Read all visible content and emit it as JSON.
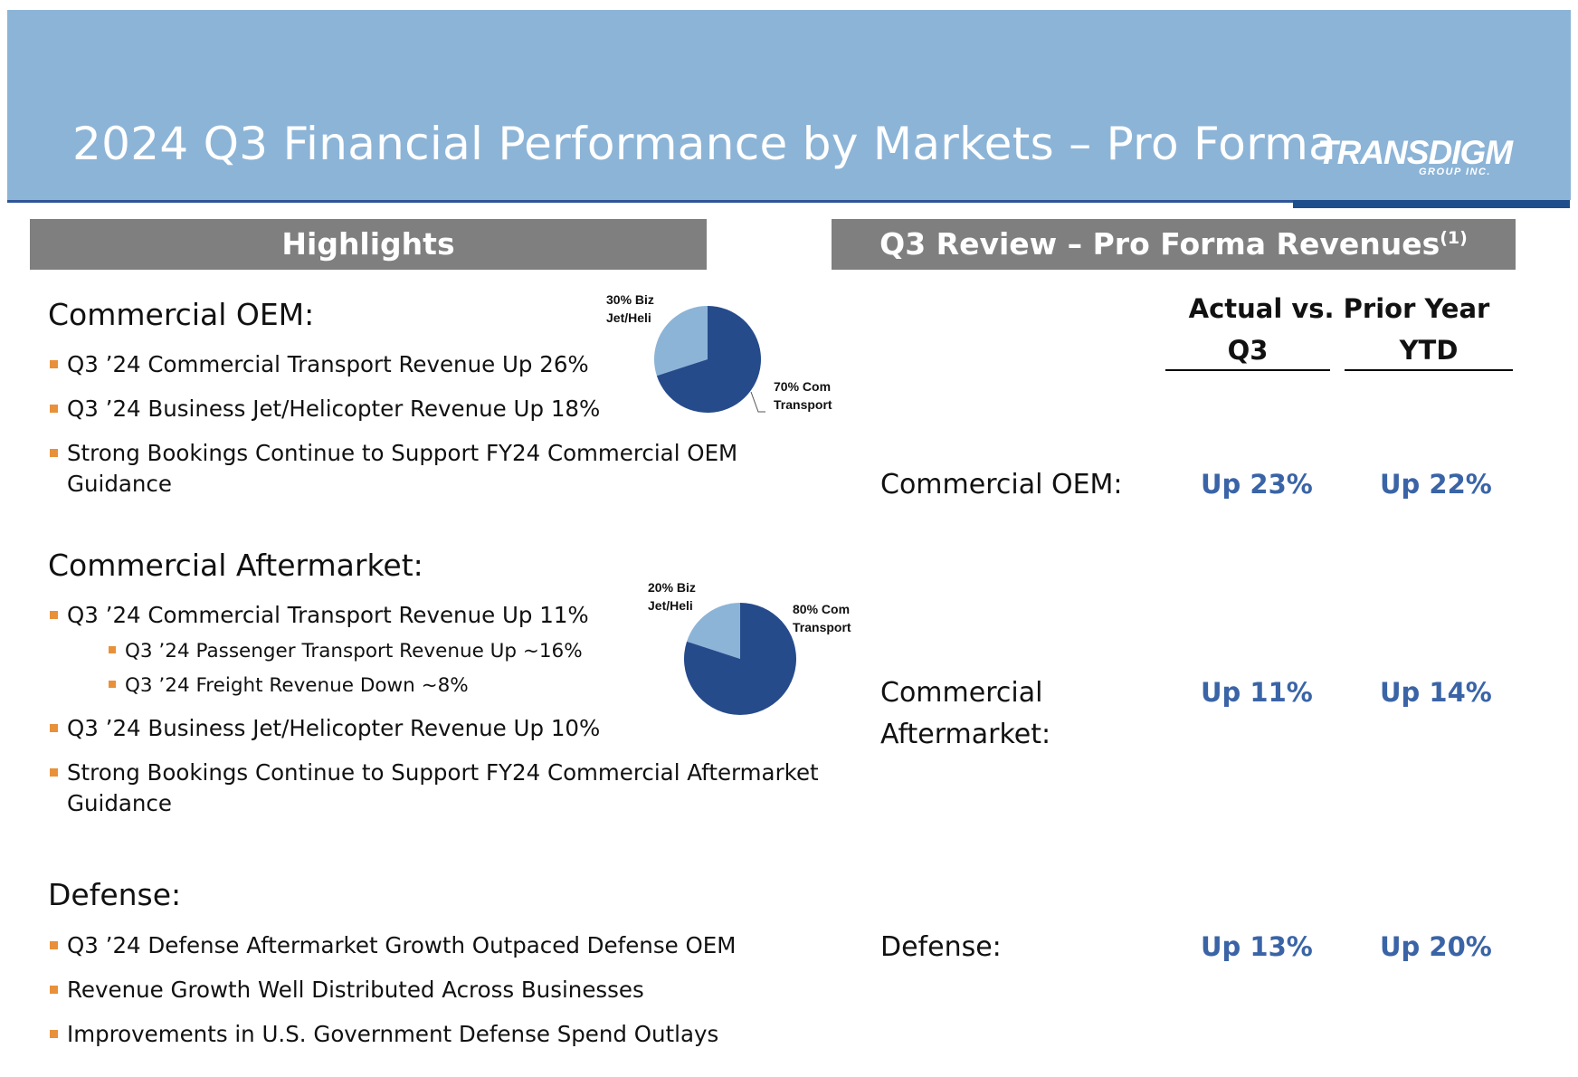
{
  "header": {
    "title": "2024 Q3 Financial Performance by Markets – Pro Forma",
    "logo_main": "TRANSDIGM",
    "logo_sub": "GROUP INC."
  },
  "highlights": {
    "bar_label": "Highlights",
    "commercial_oem": {
      "heading": "Commercial OEM:",
      "bullets": [
        "Q3 ’24 Commercial Transport Revenue Up 26%",
        "Q3 ’24 Business Jet/Helicopter Revenue Up 18%",
        "Strong Bookings Continue to Support FY24 Commercial OEM",
        "Guidance"
      ],
      "pie": {
        "label_biz_1": "30% Biz",
        "label_biz_2": "Jet/Heli",
        "label_com_1": "70% Com",
        "label_com_2": "Transport",
        "biz_pct": 30,
        "com_pct": 70
      }
    },
    "commercial_aftermarket": {
      "heading": "Commercial Aftermarket:",
      "bullets": [
        "Q3 ’24 Commercial Transport Revenue Up 11%",
        "Q3 ’24 Passenger Transport Revenue Up ~16%",
        "Q3 ’24 Freight Revenue Down ~8%",
        "Q3 ’24 Business Jet/Helicopter Revenue Up 10%",
        "Strong Bookings Continue to Support FY24 Commercial Aftermarket",
        "Guidance"
      ],
      "pie": {
        "label_biz_1": "20% Biz",
        "label_biz_2": "Jet/Heli",
        "label_com_1": "80% Com",
        "label_com_2": "Transport",
        "biz_pct": 20,
        "com_pct": 80
      }
    },
    "defense": {
      "heading": "Defense:",
      "bullets": [
        "Q3 ’24 Defense Aftermarket Growth Outpaced Defense OEM",
        "Revenue Growth Well Distributed Across Businesses",
        "Improvements in U.S. Government Defense Spend Outlays"
      ]
    }
  },
  "review": {
    "bar_label": "Q3 Review – Pro Forma Revenues",
    "bar_footnote": "(1)",
    "header": "Actual vs. Prior Year",
    "col_q3": "Q3",
    "col_ytd": "YTD",
    "rows": [
      {
        "label_1": "Commercial OEM:",
        "label_2": "",
        "q3": "Up 23%",
        "ytd": "Up 22%"
      },
      {
        "label_1": "Commercial",
        "label_2": "Aftermarket:",
        "q3": "Up 11%",
        "ytd": "Up 14%"
      },
      {
        "label_1": "Defense:",
        "label_2": "",
        "q3": "Up 13%",
        "ytd": "Up 20%"
      }
    ]
  },
  "colors": {
    "header_band": "#8cb4d7",
    "bar_gray": "#7f7f80",
    "pie_dark": "#264b8b",
    "pie_light": "#8cb4d7",
    "value_blue": "#3a64a6",
    "bullet_orange": "#e8913a"
  }
}
